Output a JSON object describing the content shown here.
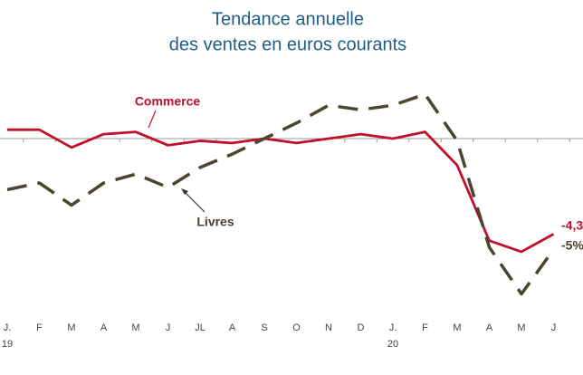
{
  "chart_data": {
    "type": "line",
    "title": "Tendance annuelle",
    "subtitle": "des ventes en euros courants",
    "categories": [
      "J.",
      "F",
      "M",
      "A",
      "M",
      "J",
      "JL",
      "A",
      "S",
      "O",
      "N",
      "D",
      "J.",
      "F",
      "M",
      "A",
      "M",
      "J"
    ],
    "year_labels": [
      "19",
      null,
      null,
      null,
      null,
      null,
      null,
      null,
      null,
      null,
      null,
      null,
      "20",
      null,
      null,
      null,
      null,
      null
    ],
    "series": [
      {
        "name": "Commerce",
        "color": "#c0102a",
        "dashed": false,
        "values": [
          0.4,
          0.4,
          -0.4,
          0.2,
          0.3,
          -0.3,
          -0.1,
          -0.2,
          0,
          -0.2,
          0,
          0.2,
          0,
          0.3,
          -1.2,
          -4.6,
          -5.1,
          -4.3
        ],
        "end_label": "-4,3"
      },
      {
        "name": "Livres",
        "color": "#4a4430",
        "dashed": true,
        "values": [
          -2.3,
          -2.0,
          -3.0,
          -2.0,
          -1.6,
          -2.2,
          -1.3,
          -0.7,
          0,
          0.7,
          1.5,
          1.3,
          1.5,
          2.0,
          -0.1,
          -4.9,
          -7.0,
          -5.0
        ],
        "end_label": "-5%"
      }
    ],
    "ylim": [
      -8,
      3
    ]
  }
}
